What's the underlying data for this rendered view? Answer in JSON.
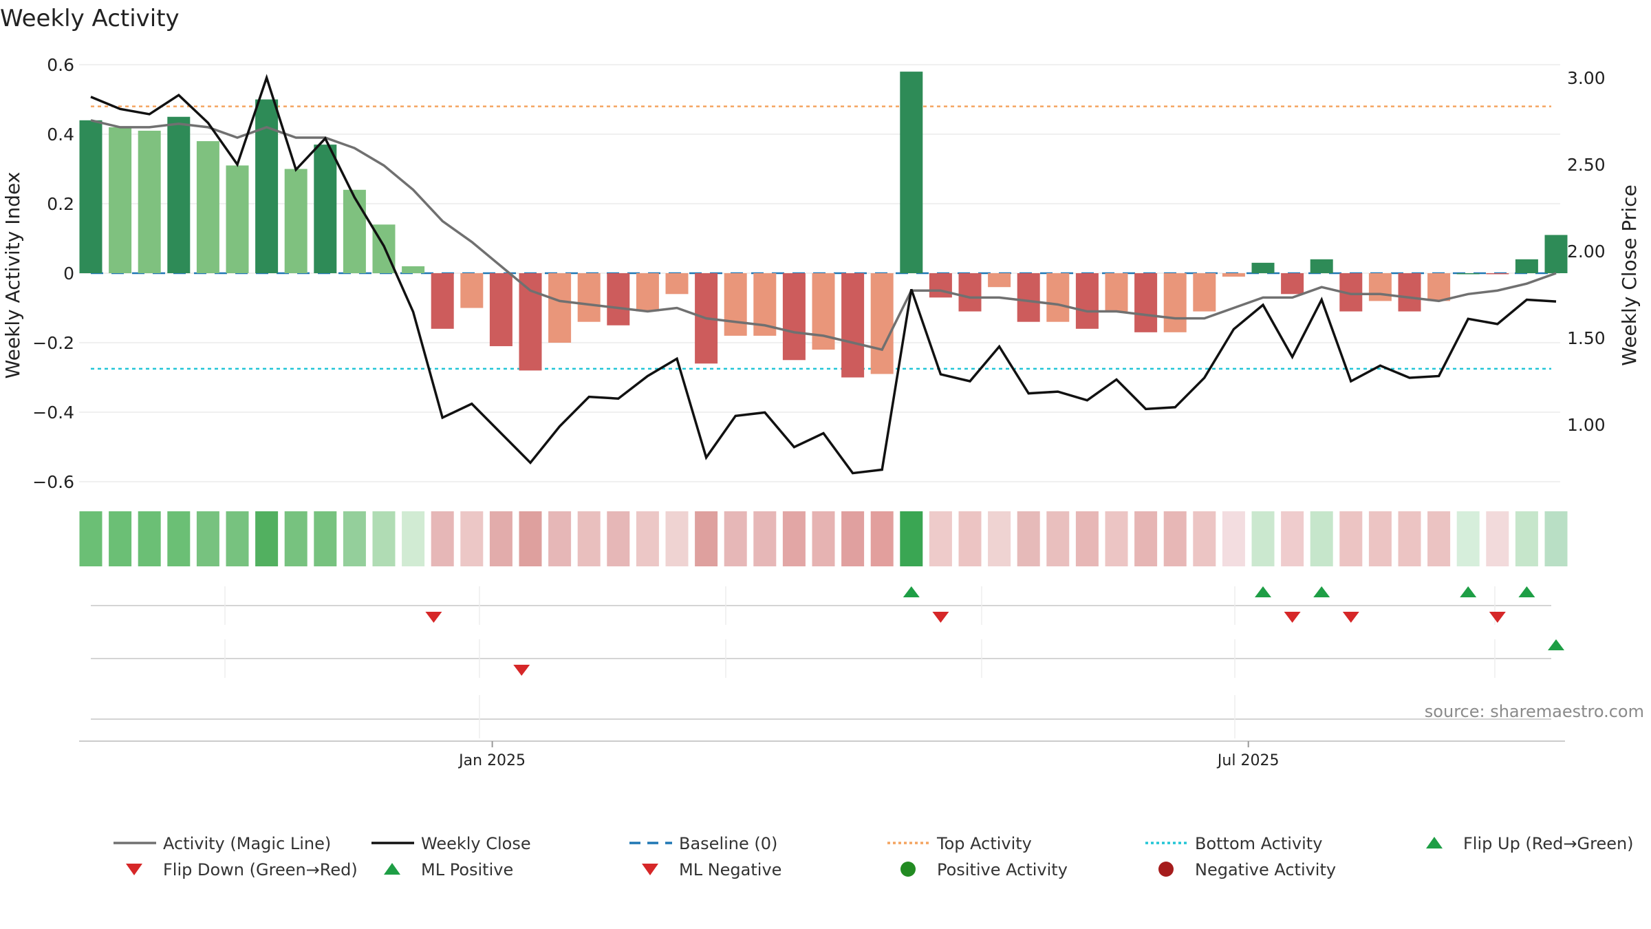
{
  "chart_data": {
    "type": "bar",
    "title": "Weekly Activity",
    "ylabel": "Weekly Activity Index",
    "y2label": "Weekly Close Price",
    "ylim": [
      -0.62,
      0.62
    ],
    "y2lim": [
      0.55,
      3.05
    ],
    "y_ticks": [
      {
        "v": 0.6,
        "label": "0.6"
      },
      {
        "v": 0.4,
        "label": "0.4"
      },
      {
        "v": 0.2,
        "label": "0.2"
      },
      {
        "v": 0,
        "label": "0"
      },
      {
        "v": -0.2,
        "label": "−0.2"
      },
      {
        "v": -0.4,
        "label": "−0.4"
      },
      {
        "v": -0.6,
        "label": "−0.6"
      }
    ],
    "y2_ticks": [
      {
        "v": 3.0,
        "label": "3.00"
      },
      {
        "v": 2.5,
        "label": "2.50"
      },
      {
        "v": 2.0,
        "label": "2.00"
      },
      {
        "v": 1.5,
        "label": "1.50"
      },
      {
        "v": 1.0,
        "label": "1.00"
      }
    ],
    "x_ticks": [
      {
        "i": 13.7,
        "label": "Jan 2025"
      },
      {
        "i": 39.5,
        "label": "Jul 2025"
      }
    ],
    "weeks": 51,
    "activity": [
      0.44,
      0.42,
      0.41,
      0.45,
      0.38,
      0.31,
      0.5,
      0.3,
      0.37,
      0.24,
      0.14,
      0.02,
      -0.16,
      -0.1,
      -0.21,
      -0.28,
      -0.2,
      -0.14,
      -0.15,
      -0.11,
      -0.06,
      -0.26,
      -0.18,
      -0.18,
      -0.25,
      -0.22,
      -0.3,
      -0.29,
      0.58,
      -0.07,
      -0.11,
      -0.04,
      -0.14,
      -0.14,
      -0.16,
      -0.11,
      -0.17,
      -0.17,
      -0.11,
      -0.01,
      0.03,
      -0.06,
      0.04,
      -0.11,
      -0.08,
      -0.11,
      -0.08,
      -0.002,
      -0.002,
      0.04,
      0.11
    ],
    "bar_colors": [
      "#2e8b57",
      "#7fc17f",
      "#7fc17f",
      "#2e8b57",
      "#7fc17f",
      "#7fc17f",
      "#2e8b57",
      "#7fc17f",
      "#2e8b57",
      "#7fc17f",
      "#7fc17f",
      "#7fc17f",
      "#cd5c5c",
      "#e9967a",
      "#cd5c5c",
      "#cd5c5c",
      "#e9967a",
      "#e9967a",
      "#cd5c5c",
      "#e9967a",
      "#e9967a",
      "#cd5c5c",
      "#e9967a",
      "#e9967a",
      "#cd5c5c",
      "#e9967a",
      "#cd5c5c",
      "#e9967a",
      "#2e8b57",
      "#cd5c5c",
      "#cd5c5c",
      "#e9967a",
      "#cd5c5c",
      "#e9967a",
      "#cd5c5c",
      "#e9967a",
      "#cd5c5c",
      "#e9967a",
      "#e9967a",
      "#e9967a",
      "#2e8b57",
      "#cd5c5c",
      "#2e8b57",
      "#cd5c5c",
      "#e9967a",
      "#cd5c5c",
      "#e9967a",
      "#2e8b57",
      "#cd5c5c",
      "#2e8b57",
      "#2e8b57"
    ],
    "magic_line": [
      0.44,
      0.42,
      0.42,
      0.43,
      0.42,
      0.39,
      0.42,
      0.39,
      0.39,
      0.36,
      0.31,
      0.24,
      0.15,
      0.09,
      0.02,
      -0.05,
      -0.08,
      -0.09,
      -0.1,
      -0.11,
      -0.1,
      -0.13,
      -0.14,
      -0.15,
      -0.17,
      -0.18,
      -0.2,
      -0.22,
      -0.05,
      -0.05,
      -0.07,
      -0.07,
      -0.08,
      -0.09,
      -0.11,
      -0.11,
      -0.12,
      -0.13,
      -0.13,
      -0.1,
      -0.07,
      -0.07,
      -0.04,
      -0.06,
      -0.06,
      -0.07,
      -0.08,
      -0.06,
      -0.05,
      -0.03,
      0.0
    ],
    "weekly_close": [
      2.89,
      2.82,
      2.79,
      2.9,
      2.74,
      2.5,
      3.0,
      2.47,
      2.65,
      2.31,
      2.03,
      1.65,
      1.04,
      1.12,
      0.95,
      0.78,
      0.99,
      1.16,
      1.15,
      1.28,
      1.38,
      0.81,
      1.05,
      1.07,
      0.87,
      0.95,
      0.72,
      0.74,
      1.78,
      1.29,
      1.25,
      1.45,
      1.18,
      1.19,
      1.14,
      1.26,
      1.09,
      1.1,
      1.27,
      1.55,
      1.69,
      1.39,
      1.72,
      1.25,
      1.34,
      1.27,
      1.28,
      1.61,
      1.58,
      1.72,
      1.71
    ],
    "baseline": 0,
    "top_activity": 0.48,
    "bottom_activity": -0.275,
    "strip_colors": [
      "#6bbf75",
      "#6bbf75",
      "#6bbf75",
      "#6bbf75",
      "#77c27f",
      "#77c27f",
      "#52b060",
      "#77c27f",
      "#77c27f",
      "#94cf9b",
      "#b0dcb4",
      "#d1ebd3",
      "#e6b7b7",
      "#ecc7c6",
      "#e2acab",
      "#dea09e",
      "#e6b7b7",
      "#e9bfbe",
      "#e6b7b7",
      "#ecc7c6",
      "#efd3d2",
      "#dea09e",
      "#e6b7b7",
      "#e6b7b7",
      "#e2a6a5",
      "#e6b3b2",
      "#e0a09f",
      "#e29f9d",
      "#3aa653",
      "#eecbca",
      "#ecc4c3",
      "#efd3d2",
      "#e6bab9",
      "#e9bfbe",
      "#e7b7b6",
      "#ecc5c4",
      "#e6b5b4",
      "#e7b7b6",
      "#ecc5c4",
      "#f3dde0",
      "#cbe8cf",
      "#efcccd",
      "#c6e6cb",
      "#ecc4c3",
      "#ecc4c3",
      "#ecc4c3",
      "#ebc3c2",
      "#d6eedb",
      "#f2dadb",
      "#c6e6cb",
      "#b9dfc5"
    ],
    "events_row1": [
      {
        "i": 11.7,
        "dir": "down"
      },
      {
        "i": 28,
        "dir": "up"
      },
      {
        "i": 29,
        "dir": "down"
      },
      {
        "i": 40,
        "dir": "up"
      },
      {
        "i": 41,
        "dir": "down"
      },
      {
        "i": 42,
        "dir": "up"
      },
      {
        "i": 43,
        "dir": "down"
      },
      {
        "i": 47,
        "dir": "up"
      },
      {
        "i": 48,
        "dir": "down"
      },
      {
        "i": 49,
        "dir": "up"
      }
    ],
    "events_row2": [
      {
        "i": 14.7,
        "dir": "down"
      },
      {
        "i": 50,
        "dir": "up"
      }
    ],
    "legend": [
      {
        "label": "Activity (Magic Line)",
        "kind": "line",
        "color": "#707070",
        "dash": ""
      },
      {
        "label": "Weekly Close",
        "kind": "line",
        "color": "#111111",
        "dash": ""
      },
      {
        "label": "Baseline (0)",
        "kind": "line",
        "color": "#1f77b4",
        "dash": "16,10"
      },
      {
        "label": "Top Activity",
        "kind": "line",
        "color": "#f4a460",
        "dash": "4,4"
      },
      {
        "label": "Bottom Activity",
        "kind": "line",
        "color": "#22c5d6",
        "dash": "4,4"
      },
      {
        "label": "Flip Up (Red→Green)",
        "kind": "tri-up",
        "color": "#1e9e45",
        "dash": ""
      },
      {
        "label": "Flip Down (Green→Red)",
        "kind": "tri-down",
        "color": "#d62728",
        "dash": ""
      },
      {
        "label": "ML Positive",
        "kind": "tri-up",
        "color": "#1e9e45",
        "dash": ""
      },
      {
        "label": "ML Negative",
        "kind": "tri-down",
        "color": "#d62728",
        "dash": ""
      },
      {
        "label": "Positive Activity",
        "kind": "dot",
        "color": "#228b22",
        "dash": ""
      },
      {
        "label": "Negative Activity",
        "kind": "dot",
        "color": "#a51c1c",
        "dash": ""
      }
    ],
    "source": "source: sharemaestro.com"
  }
}
